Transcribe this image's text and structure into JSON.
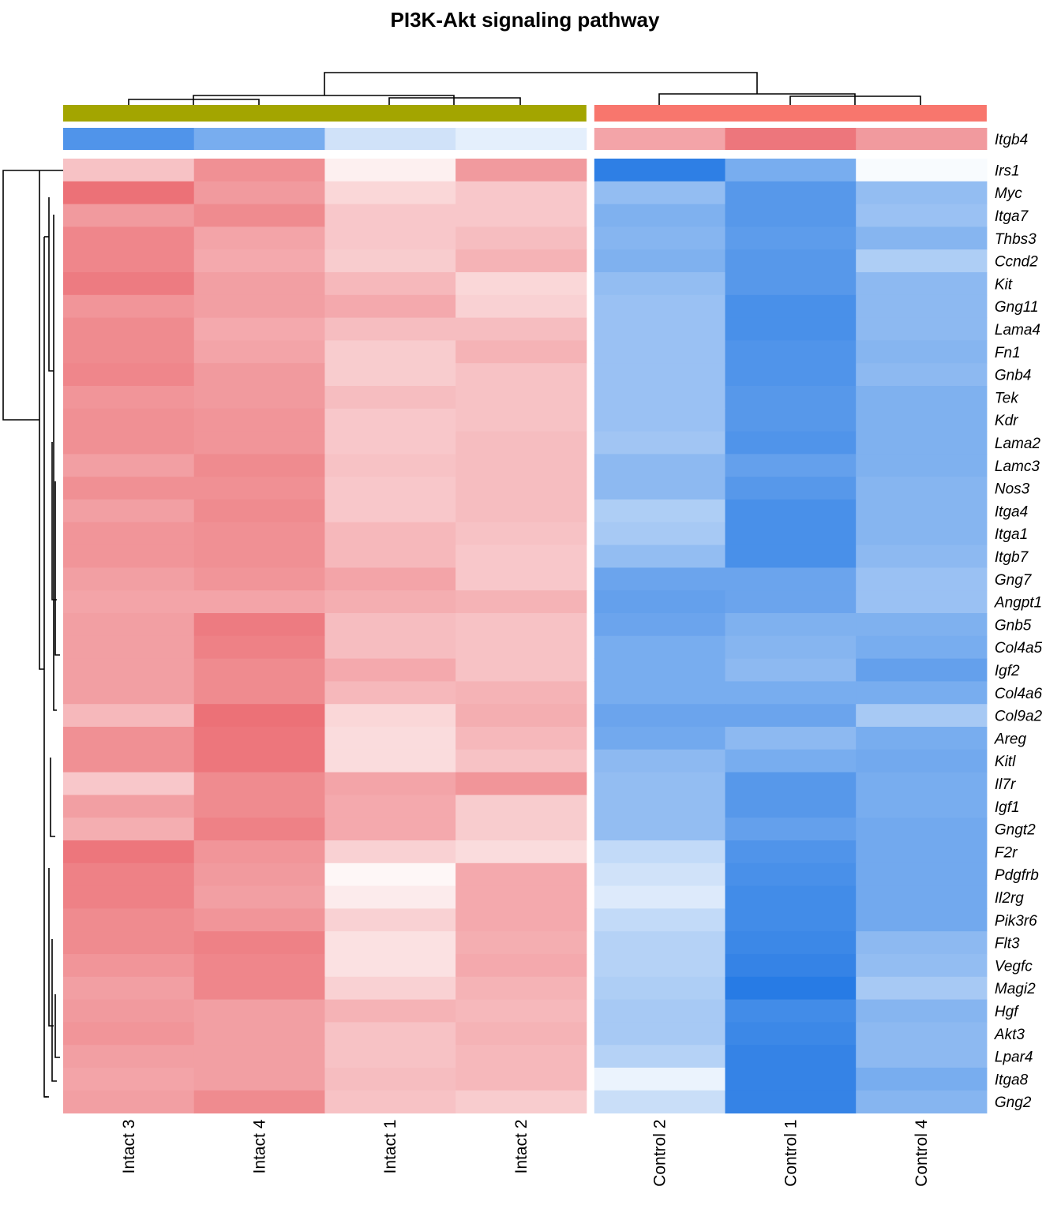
{
  "chart_data": {
    "type": "heatmap",
    "title": "PI3K-Akt signaling pathway",
    "columns": [
      "Intact 3",
      "Intact 4",
      "Intact 1",
      "Intact 2",
      "Control 2",
      "Control 1",
      "Control 4"
    ],
    "column_groups": [
      {
        "columns": [
          "Intact 3",
          "Intact 4",
          "Intact 1",
          "Intact 2"
        ],
        "color": "#a3a500"
      },
      {
        "columns": [
          "Control 2",
          "Control 1",
          "Control 4"
        ],
        "color": "#f8766d"
      }
    ],
    "split_after_column": 4,
    "annotation_row": {
      "label": "Itgb4",
      "values": [
        1.3,
        1.0,
        0.35,
        0.2,
        -0.9,
        -1.35,
        -1.0
      ]
    },
    "rows": [
      "Irs1",
      "Myc",
      "Itga7",
      "Thbs3",
      "Ccnd2",
      "Kit",
      "Gng11",
      "Lama4",
      "Fn1",
      "Gnb4",
      "Tek",
      "Kdr",
      "Lama2",
      "Lamc3",
      "Nos3",
      "Itga4",
      "Itga1",
      "Itgb7",
      "Gng7",
      "Angpt1",
      "Gnb5",
      "Col4a5",
      "Igf2",
      "Col4a6",
      "Col9a2",
      "Areg",
      "Kitl",
      "Il7r",
      "Igf1",
      "Gngt2",
      "F2r",
      "Pdgfrb",
      "Il2rg",
      "Pik3r6",
      "Flt3",
      "Vegfc",
      "Magi2",
      "Hgf",
      "Akt3",
      "Lpar4",
      "Itga8",
      "Gng2"
    ],
    "values": [
      [
        -0.6,
        -1.1,
        -0.15,
        -1.0,
        1.55,
        1.0,
        0.05
      ],
      [
        -1.4,
        -1.0,
        -0.4,
        -0.55,
        0.8,
        1.25,
        0.8
      ],
      [
        -1.0,
        -1.15,
        -0.55,
        -0.55,
        0.95,
        1.25,
        0.75
      ],
      [
        -1.2,
        -0.9,
        -0.55,
        -0.65,
        0.9,
        1.2,
        0.9
      ],
      [
        -1.2,
        -0.85,
        -0.5,
        -0.75,
        0.95,
        1.25,
        0.6
      ],
      [
        -1.3,
        -0.95,
        -0.7,
        -0.4,
        0.8,
        1.25,
        0.85
      ],
      [
        -1.05,
        -0.95,
        -0.85,
        -0.45,
        0.75,
        1.35,
        0.85
      ],
      [
        -1.15,
        -0.85,
        -0.65,
        -0.65,
        0.75,
        1.35,
        0.85
      ],
      [
        -1.15,
        -0.9,
        -0.5,
        -0.75,
        0.75,
        1.3,
        0.9
      ],
      [
        -1.2,
        -1.0,
        -0.5,
        -0.6,
        0.75,
        1.3,
        0.85
      ],
      [
        -1.05,
        -1.0,
        -0.65,
        -0.6,
        0.75,
        1.25,
        0.95
      ],
      [
        -1.1,
        -1.05,
        -0.55,
        -0.6,
        0.75,
        1.25,
        0.95
      ],
      [
        -1.1,
        -1.05,
        -0.55,
        -0.65,
        0.7,
        1.3,
        0.95
      ],
      [
        -0.95,
        -1.15,
        -0.6,
        -0.65,
        0.85,
        1.15,
        0.95
      ],
      [
        -1.1,
        -1.1,
        -0.55,
        -0.65,
        0.85,
        1.25,
        0.9
      ],
      [
        -0.95,
        -1.15,
        -0.55,
        -0.65,
        0.6,
        1.35,
        0.9
      ],
      [
        -1.05,
        -1.1,
        -0.7,
        -0.6,
        0.65,
        1.35,
        0.9
      ],
      [
        -1.05,
        -1.1,
        -0.7,
        -0.55,
        0.8,
        1.35,
        0.85
      ],
      [
        -0.95,
        -1.05,
        -0.9,
        -0.55,
        1.1,
        1.1,
        0.75
      ],
      [
        -0.9,
        -0.9,
        -0.8,
        -0.75,
        1.15,
        1.1,
        0.75
      ],
      [
        -0.95,
        -1.3,
        -0.65,
        -0.6,
        1.1,
        0.95,
        0.95
      ],
      [
        -0.95,
        -1.25,
        -0.65,
        -0.6,
        1.0,
        0.9,
        1.0
      ],
      [
        -0.95,
        -1.15,
        -0.85,
        -0.6,
        1.0,
        0.85,
        1.15
      ],
      [
        -0.95,
        -1.15,
        -0.7,
        -0.75,
        1.0,
        1.0,
        1.0
      ],
      [
        -0.7,
        -1.4,
        -0.4,
        -0.8,
        1.1,
        1.1,
        0.65
      ],
      [
        -1.1,
        -1.35,
        -0.35,
        -0.7,
        1.05,
        0.85,
        1.0
      ],
      [
        -1.1,
        -1.35,
        -0.35,
        -0.6,
        0.85,
        1.0,
        1.05
      ],
      [
        -0.55,
        -1.15,
        -0.9,
        -1.05,
        0.8,
        1.25,
        1.0
      ],
      [
        -0.95,
        -1.15,
        -0.85,
        -0.5,
        0.8,
        1.25,
        1.0
      ],
      [
        -0.8,
        -1.25,
        -0.85,
        -0.5,
        0.8,
        1.15,
        1.05
      ],
      [
        -1.35,
        -1.05,
        -0.45,
        -0.35,
        0.45,
        1.3,
        1.05
      ],
      [
        -1.25,
        -1.0,
        -0.08,
        -0.85,
        0.35,
        1.35,
        1.05
      ],
      [
        -1.25,
        -0.95,
        -0.2,
        -0.85,
        0.25,
        1.4,
        1.05
      ],
      [
        -1.15,
        -1.05,
        -0.45,
        -0.85,
        0.45,
        1.4,
        1.05
      ],
      [
        -1.15,
        -1.25,
        -0.3,
        -0.8,
        0.55,
        1.45,
        0.85
      ],
      [
        -1.05,
        -1.2,
        -0.3,
        -0.85,
        0.55,
        1.5,
        0.8
      ],
      [
        -0.95,
        -1.2,
        -0.45,
        -0.75,
        0.6,
        1.6,
        0.65
      ],
      [
        -1.0,
        -0.95,
        -0.75,
        -0.7,
        0.65,
        1.4,
        0.9
      ],
      [
        -1.05,
        -0.95,
        -0.6,
        -0.75,
        0.65,
        1.45,
        0.85
      ],
      [
        -0.95,
        -0.95,
        -0.6,
        -0.7,
        0.55,
        1.5,
        0.85
      ],
      [
        -0.9,
        -0.95,
        -0.65,
        -0.7,
        0.15,
        1.5,
        1.0
      ],
      [
        -0.95,
        -1.15,
        -0.6,
        -0.5,
        0.4,
        1.5,
        0.9
      ]
    ],
    "color_scale": {
      "low": "#ffffff",
      "min_color": "#e8535a",
      "max_color": "#1a73e3",
      "range": [
        -1.7,
        1.7
      ]
    }
  }
}
